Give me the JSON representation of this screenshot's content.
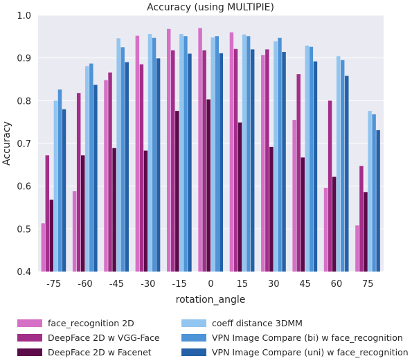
{
  "chart_data": {
    "type": "bar",
    "title": "Accuracy (using MULTIPIE)",
    "xlabel": "rotation_angle",
    "ylabel": "Accuracy",
    "ylim": [
      0.4,
      1.0
    ],
    "yticks": [
      "0.4",
      "0.5",
      "0.6",
      "0.7",
      "0.8",
      "0.9",
      "1.0"
    ],
    "grid": true,
    "legend_position": "bottom",
    "categories": [
      "-75",
      "-60",
      "-45",
      "-30",
      "-15",
      "0",
      "15",
      "30",
      "45",
      "60",
      "75"
    ],
    "series": [
      {
        "name": "face_recognition 2D",
        "color": "#d670c6",
        "values": [
          0.513,
          0.588,
          0.848,
          0.952,
          0.968,
          0.97,
          0.96,
          0.907,
          0.755,
          0.596,
          0.508
        ]
      },
      {
        "name": "DeepFace 2D w VGG-Face",
        "color": "#a32e89",
        "values": [
          0.672,
          0.818,
          0.866,
          0.885,
          0.918,
          0.918,
          0.921,
          0.92,
          0.862,
          0.8,
          0.647
        ]
      },
      {
        "name": "DeepFace 2D w Facenet",
        "color": "#5c0a4a",
        "values": [
          0.568,
          0.672,
          0.689,
          0.683,
          0.776,
          0.803,
          0.749,
          0.692,
          0.667,
          0.622,
          0.586
        ]
      },
      {
        "name": "coeff distance 3DMM",
        "color": "#92c5ef",
        "values": [
          0.8,
          0.881,
          0.946,
          0.956,
          0.956,
          0.948,
          0.955,
          0.939,
          0.929,
          0.904,
          0.776
        ]
      },
      {
        "name": "VPN Image Compare (bi) w face_recognition",
        "color": "#4d93d6",
        "values": [
          0.826,
          0.887,
          0.925,
          0.947,
          0.951,
          0.951,
          0.951,
          0.947,
          0.926,
          0.895,
          0.768
        ]
      },
      {
        "name": "VPN Image Compare (uni) w face_recognition",
        "color": "#2461a8",
        "values": [
          0.78,
          0.837,
          0.89,
          0.899,
          0.91,
          0.911,
          0.92,
          0.914,
          0.892,
          0.858,
          0.731
        ]
      }
    ]
  }
}
